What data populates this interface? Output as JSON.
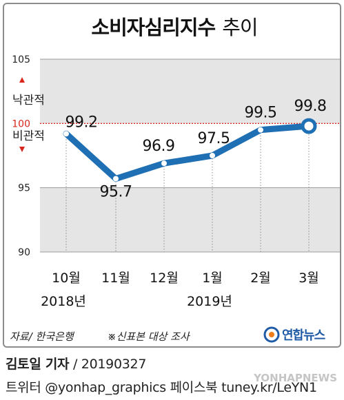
{
  "chart_data": {
    "type": "line",
    "title": "소비자심리지수",
    "title_suffix": "추이",
    "categories": [
      "10월",
      "11월",
      "12월",
      "1월",
      "2월",
      "3월"
    ],
    "year_labels": [
      {
        "category": "10월",
        "text": "2018년"
      },
      {
        "category": "1월",
        "text": "2019년"
      }
    ],
    "values": [
      99.2,
      95.7,
      96.9,
      97.5,
      99.5,
      99.8
    ],
    "value_labels": [
      "99.2",
      "95.7",
      "96.9",
      "97.5",
      "99.5",
      "99.8"
    ],
    "y_ticks": [
      105,
      100,
      95,
      90
    ],
    "y_tick_labels": [
      "105",
      "100",
      "95",
      "90"
    ],
    "ylim": [
      90,
      105
    ],
    "reference_line": 100,
    "up_label": "낙관적",
    "down_label": "비관적",
    "bands": [
      [
        100,
        105
      ],
      [
        90,
        95
      ]
    ],
    "highlight_last": true
  },
  "source": "자료/ 한국은행",
  "note": "※신표본 대상 조사",
  "agency": "연합뉴스",
  "reporter": "김토일 기자",
  "date": "/ 20190327",
  "social": "트위터 @yonhap_graphics  페이스북 tuney.kr/LeYN1",
  "watermark": "YONHAPNEWS",
  "colors": {
    "line": "#1f6fb5",
    "band": "#e5e5e5",
    "reference": "#d9261c",
    "marker_fill": "#ffffff",
    "agency_blue": "#1f5aa6",
    "agency_orange": "#ef7d1a"
  }
}
